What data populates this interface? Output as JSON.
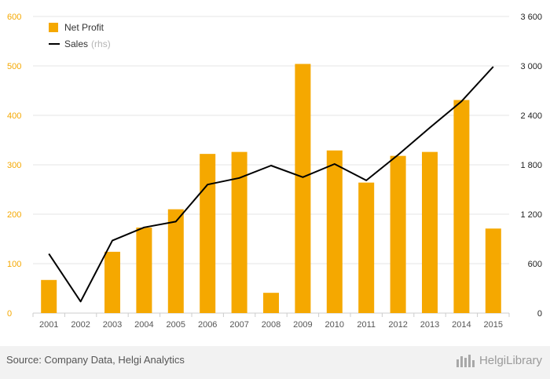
{
  "chart_data": {
    "type": "bar",
    "categories": [
      "2001",
      "2002",
      "2003",
      "2004",
      "2005",
      "2006",
      "2007",
      "2008",
      "2009",
      "2010",
      "2011",
      "2012",
      "2013",
      "2014",
      "2015"
    ],
    "series": [
      {
        "name": "Net Profit",
        "type": "bar",
        "axis": "left",
        "color": "#f5a800",
        "values": [
          67,
          0,
          124,
          173,
          210,
          322,
          326,
          41,
          504,
          329,
          264,
          318,
          326,
          431,
          171
        ]
      },
      {
        "name": "Sales",
        "name_suffix": "(rhs)",
        "type": "line",
        "axis": "right",
        "color": "#000000",
        "values": [
          720,
          140,
          880,
          1040,
          1110,
          1560,
          1640,
          1790,
          1650,
          1810,
          1610,
          1920,
          2250,
          2570,
          2990
        ]
      }
    ],
    "y_left": {
      "min": 0,
      "max": 600,
      "ticks": [
        0,
        100,
        200,
        300,
        400,
        500,
        600
      ],
      "tick_labels": [
        "0",
        "100",
        "200",
        "300",
        "400",
        "500",
        "600"
      ]
    },
    "y_right": {
      "min": 0,
      "max": 3600,
      "ticks": [
        0,
        600,
        1200,
        1800,
        2400,
        3000,
        3600
      ],
      "tick_labels": [
        "0",
        "600",
        "1 200",
        "1 800",
        "2 400",
        "3 000",
        "3 600"
      ]
    },
    "grid": true,
    "legend_position": "top-left"
  },
  "footer": {
    "source": "Source: Company Data, Helgi Analytics",
    "brand": "HelgiLibrary"
  },
  "colors": {
    "bar": "#f5a800",
    "line": "#000000",
    "left_axis_text": "#f5a800",
    "grid": "#e6e6e6",
    "footer_bg": "#f2f2f2"
  },
  "icons": {
    "brand": "helgi-logo-icon"
  }
}
